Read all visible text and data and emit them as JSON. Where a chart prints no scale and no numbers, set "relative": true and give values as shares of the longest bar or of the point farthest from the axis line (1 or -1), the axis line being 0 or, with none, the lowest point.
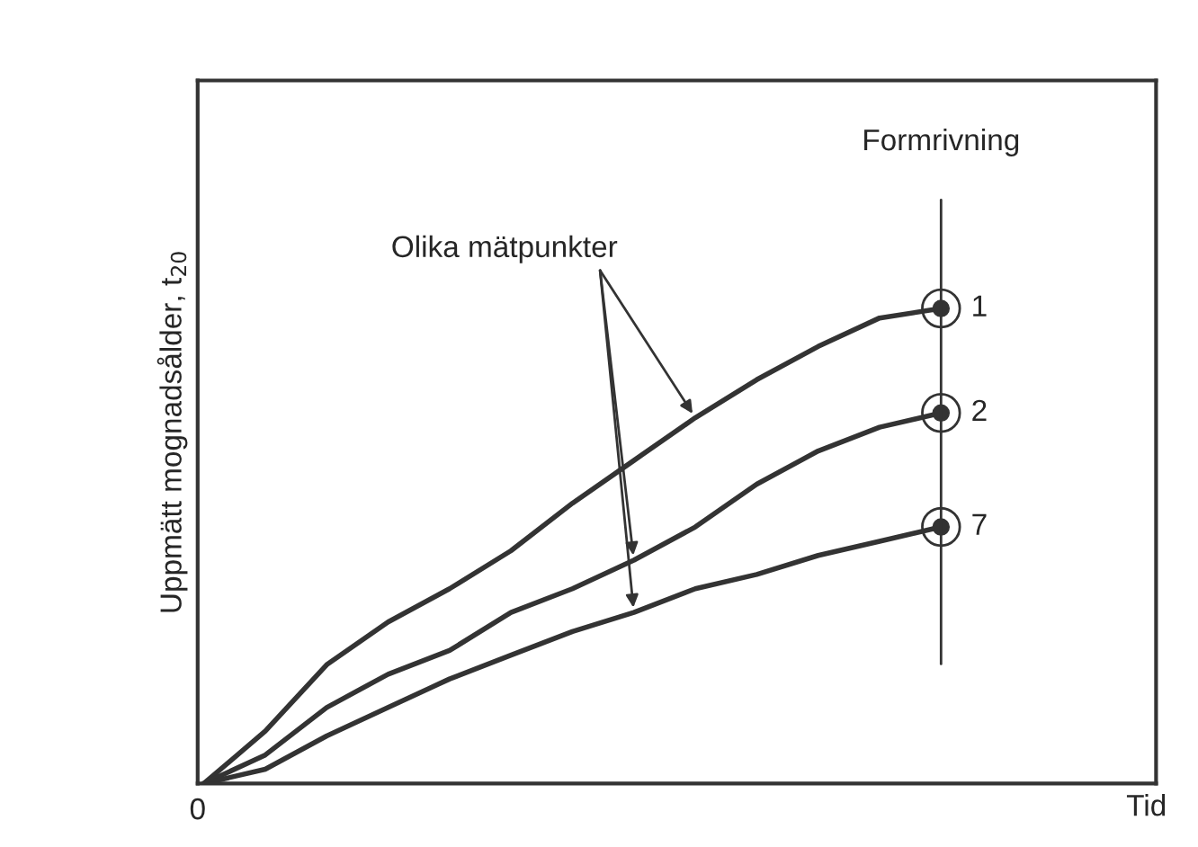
{
  "chart_data": {
    "type": "line",
    "relative": true,
    "xlabel": "Tid",
    "ylabel": "Uppmätt mognadsålder, t$_{20}$",
    "categories": [
      null,
      null,
      null,
      null,
      null,
      null,
      null,
      null,
      null,
      null,
      null,
      null,
      null,
      null,
      null,
      null
    ],
    "series": [
      {
        "name": "1",
        "color": "#333333",
        "values": [
          0,
          0.11,
          0.25,
          0.34,
          0.41,
          0.49,
          0.59,
          0.68,
          0.77,
          0.85,
          0.92,
          0.98,
          1,
          null,
          null,
          null
        ]
      },
      {
        "name": "2",
        "color": "#333333",
        "values": [
          0,
          0.06,
          0.16,
          0.23,
          0.28,
          0.36,
          0.41,
          0.47,
          0.54,
          0.63,
          0.7,
          0.75,
          0.78,
          null,
          null,
          null
        ]
      },
      {
        "name": "7",
        "color": "#333333",
        "values": [
          0,
          0.03,
          0.1,
          0.16,
          0.22,
          0.27,
          0.32,
          0.36,
          0.41,
          0.44,
          0.48,
          0.51,
          0.54,
          null,
          null,
          null
        ]
      }
    ],
    "annotations": [
      "Olika mätpunkter",
      "0",
      "Formrivning"
    ],
    "grid": false,
    "legend": false,
    "line_style": "solid"
  }
}
